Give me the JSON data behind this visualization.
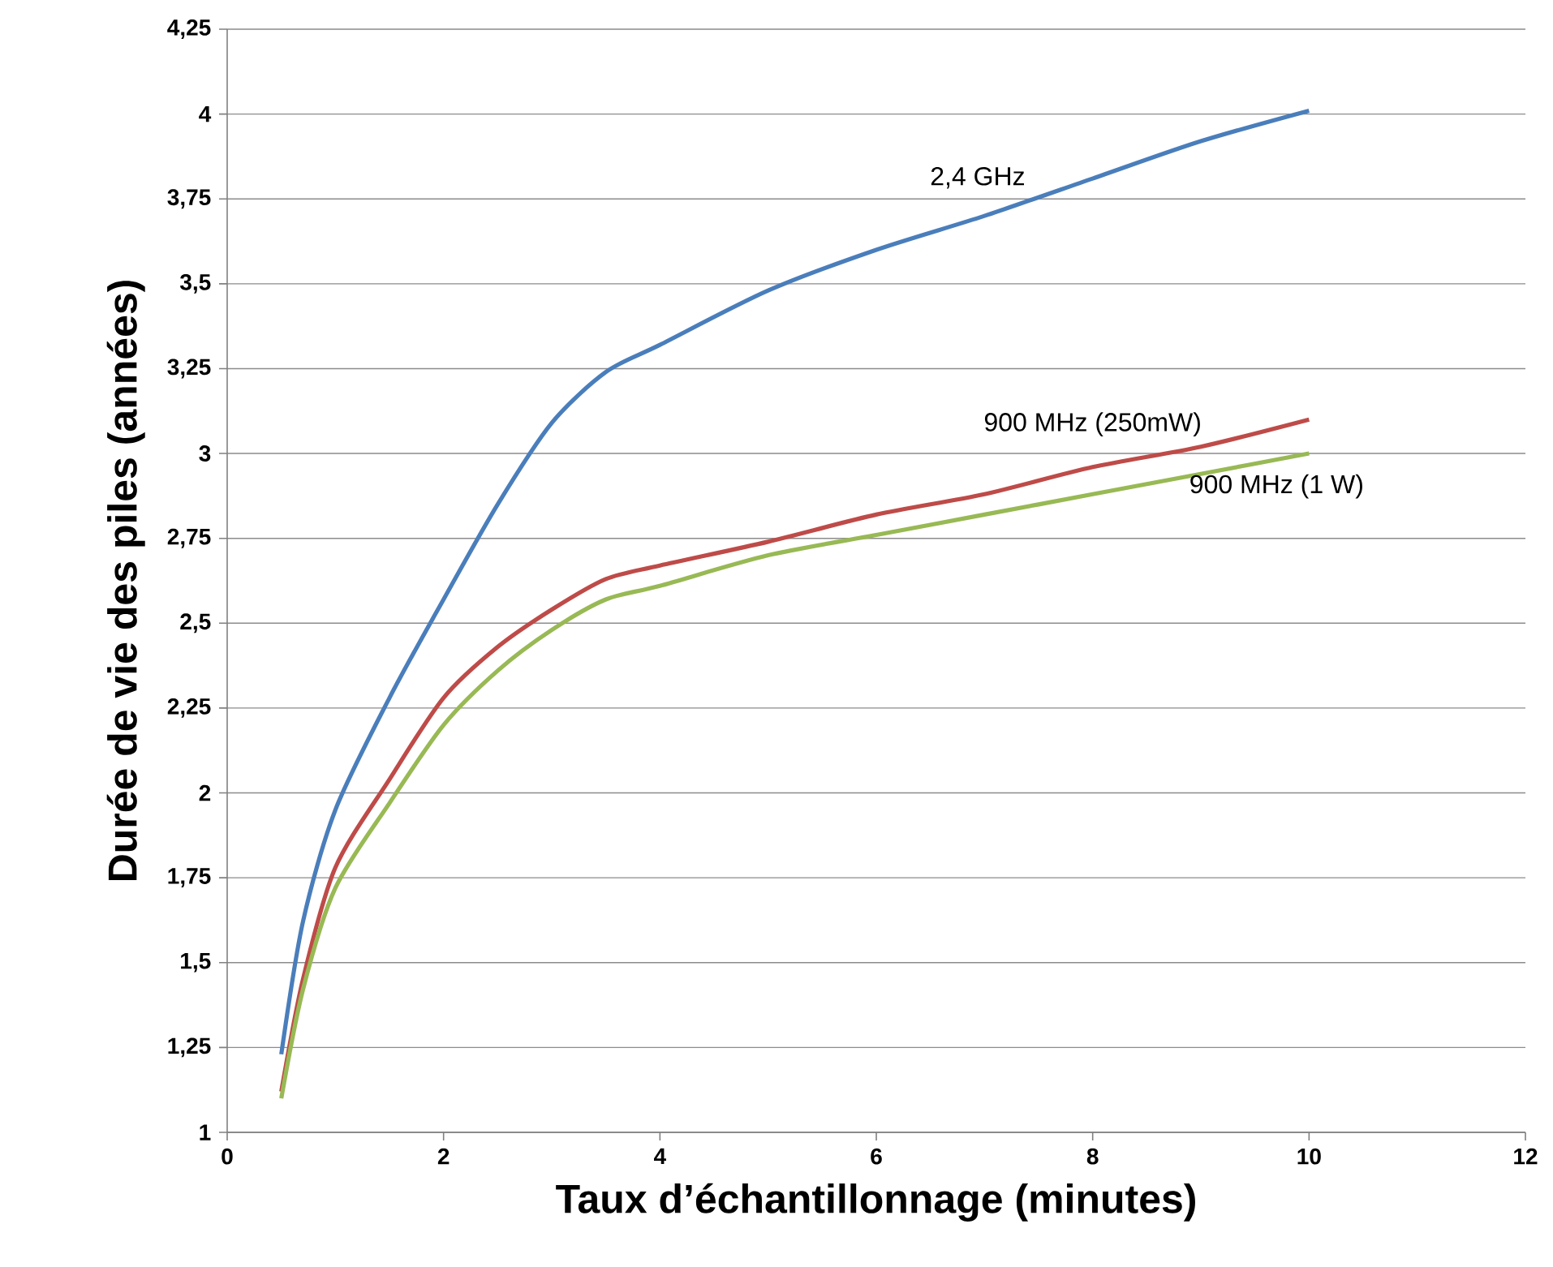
{
  "chart_data": {
    "type": "line",
    "xlabel": "Taux d’échantillonnage (minutes)",
    "ylabel": "Durée de vie des piles (années)",
    "xlim": [
      0,
      12
    ],
    "xticks": [
      0,
      2,
      4,
      6,
      8,
      10,
      12
    ],
    "ylim": [
      1,
      4.25
    ],
    "yticks": [
      {
        "value": 1,
        "label": "1"
      },
      {
        "value": 1.25,
        "label": "1,25"
      },
      {
        "value": 1.5,
        "label": "1,5"
      },
      {
        "value": 1.75,
        "label": "1,75"
      },
      {
        "value": 2,
        "label": "2"
      },
      {
        "value": 2.25,
        "label": "2,25"
      },
      {
        "value": 2.5,
        "label": "2,5"
      },
      {
        "value": 2.75,
        "label": "2,75"
      },
      {
        "value": 3,
        "label": "3"
      },
      {
        "value": 3.25,
        "label": "3,25"
      },
      {
        "value": 3.5,
        "label": "3,5"
      },
      {
        "value": 3.75,
        "label": "3,75"
      },
      {
        "value": 4,
        "label": "4"
      },
      {
        "value": 4.25,
        "label": "4,25"
      }
    ],
    "grid": "y",
    "legend": false,
    "marker": "none",
    "line_style": "solid",
    "x": [
      0.5,
      0.7,
      1,
      1.5,
      2,
      2.5,
      3,
      3.5,
      4,
      5,
      6,
      7,
      8,
      9,
      10
    ],
    "series": [
      {
        "name": "2,4 GHz",
        "color": "#4a7ebb",
        "values": [
          1.23,
          1.62,
          1.95,
          2.28,
          2.57,
          2.85,
          3.09,
          3.24,
          3.32,
          3.48,
          3.6,
          3.7,
          3.81,
          3.92,
          4.01
        ]
      },
      {
        "name": "900 MHz (250mW)",
        "color": "#be4b48",
        "values": [
          1.12,
          1.45,
          1.78,
          2.04,
          2.28,
          2.43,
          2.54,
          2.63,
          2.67,
          2.74,
          2.82,
          2.88,
          2.96,
          3.02,
          3.1
        ]
      },
      {
        "name": "900 MHz (1 W)",
        "color": "#98b954",
        "values": [
          1.1,
          1.42,
          1.72,
          1.97,
          2.2,
          2.36,
          2.48,
          2.57,
          2.61,
          2.7,
          2.76,
          2.82,
          2.88,
          2.94,
          3.0
        ]
      }
    ]
  }
}
